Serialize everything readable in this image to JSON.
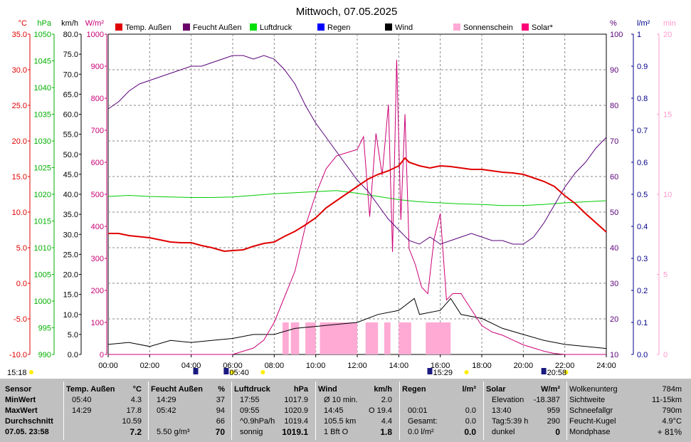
{
  "chart_data": {
    "type": "line",
    "title": "Mittwoch, 07.05.2025",
    "x_ticks": [
      "00:00",
      "02:00",
      "04:00",
      "06:00",
      "08:00",
      "10:00",
      "12:00",
      "14:00",
      "16:00",
      "18:00",
      "20:00",
      "22:00",
      "24:00"
    ],
    "axes": [
      {
        "unit": "°C",
        "color": "#e00000",
        "ticks": [
          "35.0",
          "30.0",
          "25.0",
          "20.0",
          "15.0",
          "10.0",
          "5.0",
          "0.0",
          "-5.0",
          "-10.0"
        ],
        "range": [
          -10,
          35
        ]
      },
      {
        "unit": "hPa",
        "color": "#00b000",
        "ticks": [
          "1050",
          "1045",
          "1040",
          "1035",
          "1030",
          "1025",
          "1020",
          "1015",
          "1010",
          "1005",
          "1000",
          "995",
          "990"
        ],
        "range": [
          990,
          1050
        ]
      },
      {
        "unit": "km/h",
        "color": "#000000",
        "ticks": [
          "80.0",
          "75.0",
          "70.0",
          "65.0",
          "60.0",
          "55.0",
          "50.0",
          "45.0",
          "40.0",
          "35.0",
          "30.0",
          "25.0",
          "20.0",
          "15.0",
          "10.0",
          "5.0",
          "0.0"
        ],
        "range": [
          0,
          80
        ]
      },
      {
        "unit": "W/m²",
        "color": "#cc0077",
        "ticks": [
          "1000",
          "900",
          "800",
          "700",
          "600",
          "500",
          "400",
          "300",
          "200",
          "100",
          "0"
        ],
        "range": [
          0,
          1000
        ]
      },
      {
        "unit": "%",
        "color": "#5a007a",
        "ticks": [
          "100",
          "90",
          "80",
          "70",
          "60",
          "50",
          "40",
          "30",
          "20",
          "10"
        ],
        "range": [
          10,
          100
        ]
      },
      {
        "unit": "l/m²",
        "color": "#00008b",
        "ticks": [
          "1",
          "0.9",
          "0.8",
          "0.7",
          "0.6",
          "0.5",
          "0.4",
          "0.3",
          "0.2",
          "0.1",
          "0.0"
        ],
        "range": [
          0,
          1
        ]
      },
      {
        "unit": "min",
        "color": "#ff99cc",
        "ticks": [
          "20",
          "15",
          "10",
          "5",
          "0"
        ],
        "range": [
          0,
          20
        ]
      }
    ],
    "legend": [
      {
        "name": "Temp. Außen",
        "color": "#e00000"
      },
      {
        "name": "Feucht Außen",
        "color": "#6a006a"
      },
      {
        "name": "Luftdruck",
        "color": "#00e000"
      },
      {
        "name": "Regen",
        "color": "#0000ff"
      },
      {
        "name": "Wind",
        "color": "#000000"
      },
      {
        "name": "Sonnenschein",
        "color": "#ffaad4"
      },
      {
        "name": "Solar*",
        "color": "#ff0077"
      }
    ],
    "series": [
      {
        "name": "Temp. Außen",
        "unit": "°C",
        "x": [
          0,
          0.5,
          1,
          2,
          3,
          3.5,
          4,
          4.5,
          5,
          5.6,
          6,
          6.5,
          7,
          7.5,
          8,
          8.5,
          9,
          9.5,
          10,
          10.5,
          11,
          11.5,
          12,
          12.5,
          13,
          13.5,
          14,
          14.3,
          14.5,
          15,
          15.5,
          16,
          16.5,
          17,
          17.5,
          18,
          18.5,
          19,
          19.5,
          20,
          20.5,
          21,
          21.5,
          22,
          22.5,
          23,
          23.5,
          24
        ],
        "y": [
          7.0,
          7.0,
          6.7,
          6.4,
          5.8,
          5.7,
          5.7,
          5.3,
          5.0,
          4.5,
          4.6,
          4.7,
          5.2,
          5.6,
          5.8,
          6.6,
          7.3,
          8.2,
          9.2,
          10.6,
          11.6,
          12.6,
          13.6,
          14.6,
          15.3,
          15.8,
          16.5,
          17.6,
          17.0,
          16.5,
          16.2,
          16.5,
          16.4,
          16.2,
          16.0,
          16.0,
          15.8,
          15.6,
          15.5,
          15.3,
          14.8,
          14.3,
          13.6,
          12.3,
          11.2,
          9.8,
          8.5,
          7.2
        ]
      },
      {
        "name": "Feucht Außen",
        "unit": "%",
        "x": [
          0,
          0.5,
          1,
          1.5,
          2,
          2.5,
          3,
          3.5,
          4,
          4.5,
          5,
          5.5,
          6,
          6.5,
          7,
          7.5,
          8,
          8.5,
          9,
          9.5,
          10,
          10.5,
          11,
          11.5,
          12,
          12.5,
          13,
          13.5,
          14,
          14.5,
          15,
          15.5,
          16,
          16.5,
          17,
          17.5,
          18,
          18.5,
          19,
          19.5,
          20,
          20.5,
          21,
          21.5,
          22,
          22.5,
          23,
          23.5,
          24
        ],
        "y": [
          79,
          81,
          84,
          86,
          87,
          88,
          89,
          90,
          91,
          91,
          92,
          93,
          94,
          94,
          93,
          94,
          93,
          90,
          86,
          80,
          75,
          71,
          67,
          63,
          59,
          56,
          52,
          48,
          45,
          42,
          41,
          43,
          41,
          42,
          43,
          44,
          43,
          42,
          42,
          41,
          41,
          43,
          47,
          52,
          57,
          61,
          64,
          68,
          71
        ]
      },
      {
        "name": "Luftdruck",
        "unit": "hPa",
        "x": [
          0,
          1,
          2,
          3,
          4,
          5,
          6,
          7,
          8,
          9,
          10,
          11,
          12,
          13,
          14,
          15,
          16,
          17,
          18,
          19,
          20,
          21,
          22,
          23,
          24
        ],
        "y": [
          1019.6,
          1019.8,
          1019.6,
          1019.5,
          1019.4,
          1019.4,
          1019.5,
          1019.8,
          1020.1,
          1020.3,
          1020.5,
          1020.7,
          1020.2,
          1019.6,
          1019.0,
          1018.6,
          1018.4,
          1018.2,
          1018.1,
          1017.9,
          1017.9,
          1018.1,
          1018.4,
          1018.6,
          1018.8
        ]
      },
      {
        "name": "Solar*",
        "unit": "W/m²",
        "x": [
          0,
          6,
          6.5,
          7,
          7.5,
          8,
          8.5,
          9,
          9.5,
          10,
          10.5,
          11,
          11.5,
          12,
          12.3,
          12.6,
          12.9,
          13.2,
          13.5,
          13.7,
          13.9,
          14.1,
          14.3,
          14.5,
          14.8,
          15.1,
          15.4,
          15.7,
          16,
          16.3,
          16.6,
          17,
          17.5,
          18,
          18.5,
          19,
          19.5,
          20,
          20.5,
          21,
          21.5,
          22,
          24
        ],
        "y": [
          0,
          0,
          10,
          20,
          45,
          100,
          180,
          260,
          400,
          500,
          580,
          620,
          630,
          640,
          680,
          430,
          690,
          560,
          780,
          320,
          920,
          420,
          750,
          330,
          280,
          210,
          190,
          360,
          440,
          170,
          190,
          190,
          140,
          90,
          70,
          60,
          45,
          30,
          20,
          10,
          3,
          0,
          0
        ]
      },
      {
        "name": "Wind",
        "unit": "km/h",
        "x": [
          0,
          1,
          2,
          3,
          4,
          5,
          6,
          7,
          8,
          9,
          10,
          11,
          12,
          13,
          14,
          14.75,
          15,
          16,
          16.5,
          17,
          18,
          19,
          20,
          21,
          22,
          23,
          24
        ],
        "y": [
          2.5,
          3.0,
          2.0,
          3.5,
          3.0,
          3.5,
          4.0,
          5.0,
          5.0,
          6.5,
          7.0,
          7.5,
          8.0,
          10.0,
          11.0,
          14.0,
          10.0,
          11.0,
          14.0,
          10.0,
          9.0,
          6.5,
          5.0,
          3.5,
          2.5,
          2.0,
          1.5
        ]
      }
    ],
    "sunshine_blocks": [
      [
        8.4,
        8.7
      ],
      [
        8.8,
        9.2
      ],
      [
        9.5,
        10.0
      ],
      [
        10.2,
        12.0
      ],
      [
        12.4,
        13.0
      ],
      [
        13.3,
        13.6
      ],
      [
        14.0,
        14.6
      ],
      [
        15.3,
        16.5
      ]
    ],
    "day_labels": [
      {
        "x": 0,
        "text": "15:18"
      },
      {
        "x": 4.2,
        "text": ""
      },
      {
        "x": 5.67,
        "text": "05:40"
      },
      {
        "x": 15.48,
        "text": "15:29"
      },
      {
        "x": 20.97,
        "text": "20:58"
      }
    ]
  },
  "panel": {
    "columns": [
      {
        "header": "Sensor",
        "unit": "",
        "rows": [
          [
            "MinWert",
            "",
            ""
          ],
          [
            "MaxWert",
            "",
            ""
          ],
          [
            "Durchschnitt",
            "",
            ""
          ],
          [
            "07.05. 23:58",
            "",
            ""
          ]
        ]
      },
      {
        "header": "Temp. Außen",
        "unit": "°C",
        "rows": [
          [
            "05:40",
            "",
            "4.3"
          ],
          [
            "14:29",
            "",
            "17.8"
          ],
          [
            "",
            "",
            "10.59"
          ],
          [
            "",
            "",
            "7.2"
          ]
        ]
      },
      {
        "header": "Feucht Außen",
        "unit": "%",
        "rows": [
          [
            "14:29",
            "",
            "37"
          ],
          [
            "05:42",
            "",
            "94"
          ],
          [
            "",
            "",
            "66"
          ],
          [
            "5.50 g/m³",
            "",
            "70"
          ]
        ]
      },
      {
        "header": "Luftdruck",
        "unit": "hPa",
        "rows": [
          [
            "17:55",
            "",
            "1017.9"
          ],
          [
            "09:55",
            "",
            "1020.9"
          ],
          [
            "^0.9hPa/h",
            "",
            "1019.4"
          ],
          [
            "sonnig",
            "",
            "1019.1"
          ]
        ]
      },
      {
        "header": "Wind",
        "unit": "km/h",
        "rows": [
          [
            "Ø 10 min.",
            "",
            "2.0"
          ],
          [
            "14:45",
            "",
            "O 19.4"
          ],
          [
            "105.5 km",
            "",
            "4.4"
          ],
          [
            "1 Bft O",
            "",
            "1.8"
          ]
        ]
      },
      {
        "header": "Regen",
        "unit": "l/m²",
        "rows": [
          [
            "",
            "",
            ""
          ],
          [
            "00:01",
            "",
            "0.0"
          ],
          [
            "Gesamt:",
            "",
            "0.0"
          ],
          [
            "0.0 l/m²",
            "",
            "0.0"
          ]
        ]
      },
      {
        "header": "Solar",
        "unit": "W/m²",
        "rows": [
          [
            "Elevation",
            "",
            "-18.387"
          ],
          [
            "13:40",
            "",
            "959"
          ],
          [
            "Tag:5:39 h",
            "",
            "290"
          ],
          [
            "dunkel",
            "",
            "0"
          ]
        ]
      },
      {
        "header": "Wolkenunterg",
        "unit": "784m",
        "rows": [
          [
            "Sichtweite",
            "",
            "11-15km"
          ],
          [
            "Schneefallgr",
            "",
            "790m"
          ],
          [
            "Feucht-Kugel",
            "",
            "4.9°C"
          ],
          [
            "Mondphase",
            "",
            "+ 81%"
          ]
        ]
      }
    ]
  }
}
